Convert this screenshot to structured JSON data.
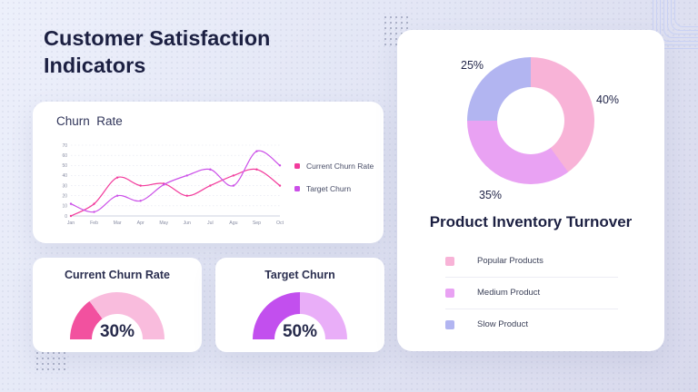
{
  "page": {
    "title": "Customer Satisfaction Indicators"
  },
  "colors": {
    "heading": "#1c2042",
    "card_background": "#ffffff",
    "background_gradient": [
      "#edf0fb",
      "#d8d9ec"
    ]
  },
  "chart_data": [
    {
      "type": "line",
      "title": "Churn  Rate",
      "x": [
        "Jan",
        "Feb",
        "Mar",
        "Apr",
        "May",
        "Jun",
        "Jul",
        "Agu",
        "Sep",
        "Oct"
      ],
      "series": [
        {
          "name": "Current Churn Rate",
          "color": "#f23b9c",
          "values": [
            0,
            12,
            38,
            30,
            32,
            20,
            30,
            40,
            46,
            30
          ]
        },
        {
          "name": "Target Churn",
          "color": "#cb4fe8",
          "values": [
            12,
            4,
            20,
            15,
            31,
            40,
            46,
            30,
            64,
            50
          ]
        }
      ],
      "ylim": [
        0,
        70
      ],
      "yticks": [
        0,
        10,
        20,
        30,
        40,
        50,
        60,
        70
      ],
      "grid": true,
      "legend_position": "right"
    },
    {
      "type": "gauge",
      "title": "Current Churn Rate",
      "value": 30,
      "value_label": "30%",
      "range": [
        0,
        100
      ],
      "colors": [
        "#f2519f",
        "#f9bcdd"
      ]
    },
    {
      "type": "gauge",
      "title": "Target Churn",
      "value": 50,
      "value_label": "50%",
      "range": [
        0,
        100
      ],
      "colors": [
        "#c24fee",
        "#e9aef8"
      ]
    },
    {
      "type": "pie",
      "donut": true,
      "title": "Product Inventory Turnover",
      "labels": [
        "Popular Products",
        "Medium Product",
        "Slow Product"
      ],
      "values": [
        40,
        35,
        25
      ],
      "value_labels": [
        "40%",
        "35%",
        "25%"
      ],
      "colors": [
        "#f8b3d7",
        "#e9a2f3",
        "#b2b5f1"
      ],
      "start_angle_deg": 0,
      "legend_position": "bottom"
    }
  ]
}
